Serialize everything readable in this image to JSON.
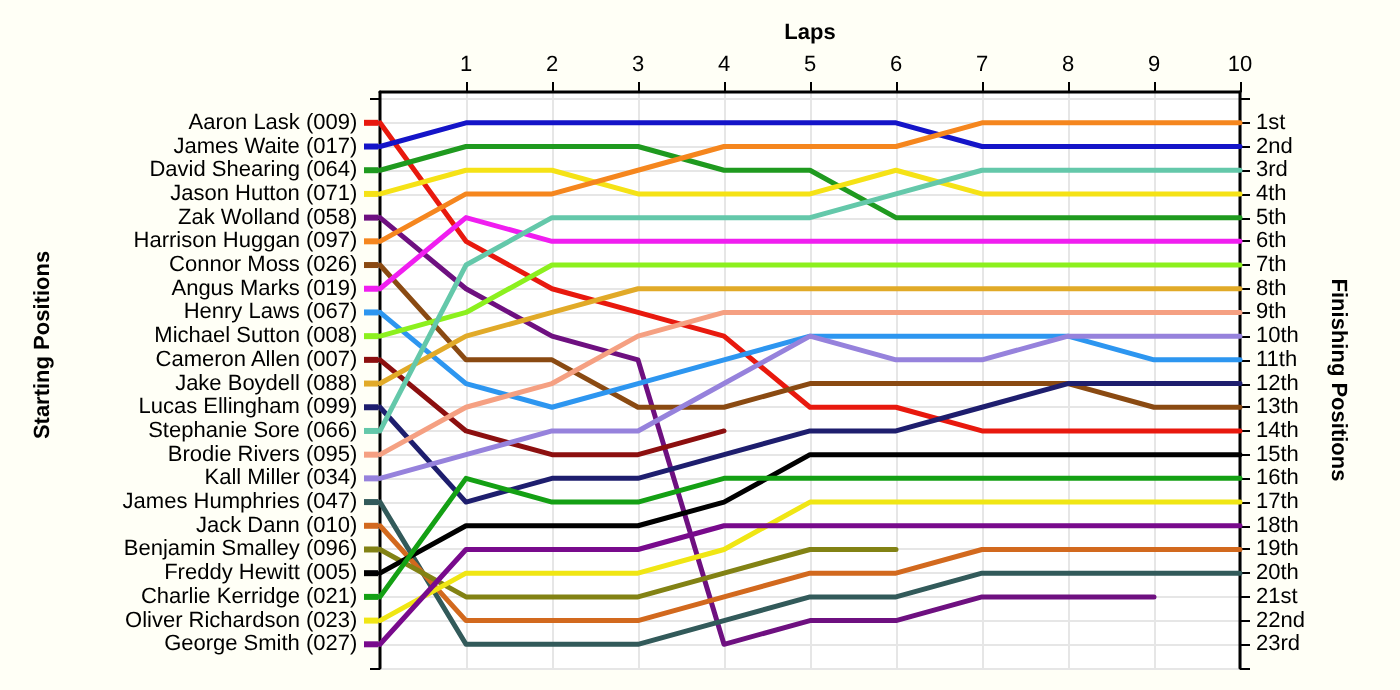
{
  "chart_data": {
    "type": "line",
    "xlabel": "Laps",
    "ylabel": "Finishing Positions",
    "annotations": [
      "Starting Positions"
    ],
    "x": [
      0,
      1,
      2,
      3,
      4,
      5,
      6,
      7,
      8,
      9,
      10
    ],
    "xlim": [
      0,
      10
    ],
    "xticks": [
      1,
      2,
      3,
      4,
      5,
      6,
      7,
      8,
      9,
      10
    ],
    "ylim": [
      24,
      -0.3
    ],
    "yticks": [
      {
        "value": 0,
        "label": null
      },
      {
        "value": 1,
        "label": "1st"
      },
      {
        "value": 2,
        "label": "2nd"
      },
      {
        "value": 3,
        "label": "3rd"
      },
      {
        "value": 4,
        "label": "4th"
      },
      {
        "value": 5,
        "label": "5th"
      },
      {
        "value": 6,
        "label": "6th"
      },
      {
        "value": 7,
        "label": "7th"
      },
      {
        "value": 8,
        "label": "8th"
      },
      {
        "value": 9,
        "label": "9th"
      },
      {
        "value": 10,
        "label": "10th"
      },
      {
        "value": 11,
        "label": "11th"
      },
      {
        "value": 12,
        "label": "12th"
      },
      {
        "value": 13,
        "label": "13th"
      },
      {
        "value": 14,
        "label": "14th"
      },
      {
        "value": 15,
        "label": "15th"
      },
      {
        "value": 16,
        "label": "16th"
      },
      {
        "value": 17,
        "label": "17th"
      },
      {
        "value": 18,
        "label": "18th"
      },
      {
        "value": 19,
        "label": "19th"
      },
      {
        "value": 20,
        "label": "20th"
      },
      {
        "value": 21,
        "label": "21st"
      },
      {
        "value": 22,
        "label": "22nd"
      },
      {
        "value": 23,
        "label": "23rd"
      },
      {
        "value": 24,
        "label": null
      }
    ],
    "grid": true,
    "legend": "left",
    "marker": "none",
    "line_style": "solid",
    "series": [
      {
        "name": "Aaron Lask (009)",
        "color": "#e8190e",
        "values": [
          1,
          6,
          8,
          9,
          10,
          13,
          13,
          14,
          14,
          14,
          14
        ]
      },
      {
        "name": "James Waite (017)",
        "color": "#1414c8",
        "values": [
          2,
          1,
          1,
          1,
          1,
          1,
          1,
          2,
          2,
          2,
          2
        ]
      },
      {
        "name": "David Shearing (064)",
        "color": "#1f9a1f",
        "values": [
          3,
          2,
          2,
          2,
          3,
          3,
          5,
          5,
          5,
          5,
          5
        ]
      },
      {
        "name": "Jason Hutton (071)",
        "color": "#f5e216",
        "values": [
          4,
          3,
          3,
          4,
          4,
          4,
          3,
          4,
          4,
          4,
          4
        ]
      },
      {
        "name": "Zak Wolland (058)",
        "color": "#6e1080",
        "values": [
          5,
          8,
          10,
          11,
          23,
          22,
          22,
          21,
          21,
          21,
          null
        ]
      },
      {
        "name": "Harrison Huggan (097)",
        "color": "#f5861e",
        "values": [
          6,
          4,
          4,
          3,
          2,
          2,
          2,
          1,
          1,
          1,
          1
        ]
      },
      {
        "name": "Connor Moss (026)",
        "color": "#8a4a12",
        "values": [
          7,
          11,
          11,
          13,
          13,
          12,
          12,
          12,
          12,
          13,
          13
        ]
      },
      {
        "name": "Angus Marks (019)",
        "color": "#f01ef0",
        "values": [
          8,
          5,
          6,
          6,
          6,
          6,
          6,
          6,
          6,
          6,
          6
        ]
      },
      {
        "name": "Henry Laws (067)",
        "color": "#2d96f0",
        "values": [
          9,
          12,
          13,
          12,
          11,
          10,
          10,
          10,
          10,
          11,
          11
        ]
      },
      {
        "name": "Michael Sutton (008)",
        "color": "#8cf01e",
        "values": [
          10,
          9,
          7,
          7,
          7,
          7,
          7,
          7,
          7,
          7,
          7
        ]
      },
      {
        "name": "Cameron Allen (007)",
        "color": "#8c0f0f",
        "values": [
          11,
          14,
          15,
          15,
          14,
          null,
          null,
          null,
          null,
          null,
          null
        ]
      },
      {
        "name": "Jake Boydell (088)",
        "color": "#e1aa28",
        "values": [
          12,
          10,
          9,
          8,
          8,
          8,
          8,
          8,
          8,
          8,
          8
        ]
      },
      {
        "name": "Lucas Ellingham (099)",
        "color": "#1e1e6e",
        "values": [
          13,
          17,
          16,
          16,
          15,
          14,
          14,
          13,
          12,
          12,
          12
        ]
      },
      {
        "name": "Stephanie Sore (066)",
        "color": "#64c8aa",
        "values": [
          14,
          7,
          5,
          5,
          5,
          5,
          4,
          3,
          3,
          3,
          3
        ]
      },
      {
        "name": "Brodie Rivers (095)",
        "color": "#f5a082",
        "values": [
          15,
          13,
          12,
          10,
          9,
          9,
          9,
          9,
          9,
          9,
          9
        ]
      },
      {
        "name": "Kall Miller (034)",
        "color": "#9682dc",
        "values": [
          16,
          15,
          14,
          14,
          12,
          10,
          11,
          11,
          10,
          10,
          10
        ]
      },
      {
        "name": "James Humphries (047)",
        "color": "#325a5a",
        "values": [
          17,
          23,
          23,
          23,
          22,
          21,
          21,
          20,
          20,
          20,
          20
        ]
      },
      {
        "name": "Jack Dann (010)",
        "color": "#d2691e",
        "values": [
          18,
          22,
          22,
          22,
          21,
          20,
          20,
          19,
          19,
          19,
          19
        ]
      },
      {
        "name": "Benjamin Smalley (096)",
        "color": "#828214",
        "values": [
          19,
          21,
          21,
          21,
          20,
          19,
          19,
          null,
          null,
          null,
          null
        ]
      },
      {
        "name": "Freddy Hewitt (005)",
        "color": "#000000",
        "values": [
          20,
          18,
          18,
          18,
          17,
          15,
          15,
          15,
          15,
          15,
          15
        ]
      },
      {
        "name": "Charlie Kerridge (021)",
        "color": "#14a014",
        "values": [
          21,
          16,
          17,
          17,
          16,
          16,
          16,
          16,
          16,
          16,
          16
        ]
      },
      {
        "name": "Oliver Richardson (023)",
        "color": "#f0e614",
        "values": [
          22,
          20,
          20,
          20,
          19,
          17,
          17,
          17,
          17,
          17,
          17
        ]
      },
      {
        "name": "George Smith (027)",
        "color": "#780a8c",
        "values": [
          23,
          19,
          19,
          19,
          18,
          18,
          18,
          18,
          18,
          18,
          18
        ]
      }
    ]
  }
}
